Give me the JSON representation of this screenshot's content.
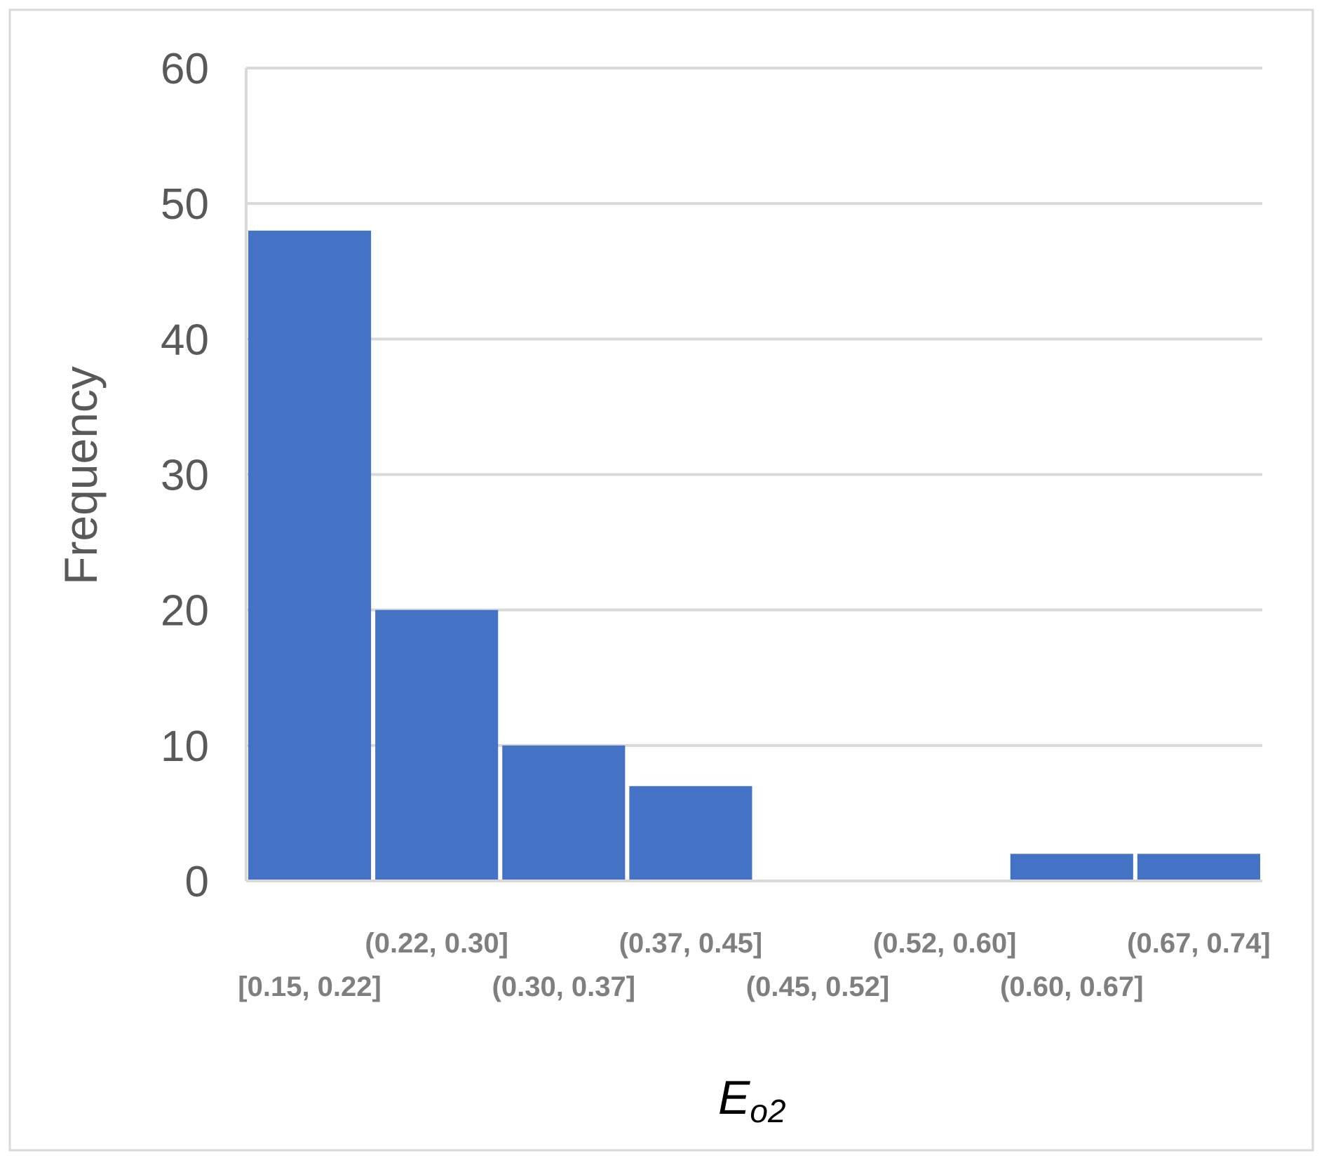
{
  "chart_data": {
    "type": "bar",
    "categories": [
      "[0.15, 0.22]",
      "(0.22, 0.30]",
      "(0.30, 0.37]",
      "(0.37, 0.45]",
      "(0.45, 0.52]",
      "(0.52, 0.60]",
      "(0.60, 0.67]",
      "(0.67, 0.74]"
    ],
    "values": [
      48,
      20,
      10,
      7,
      0,
      0,
      2,
      2
    ],
    "ylabel": "Frequency",
    "xlabel": {
      "main": "E",
      "subscript": "o2"
    },
    "ylim": [
      0,
      60
    ],
    "yticks": [
      0,
      10,
      20,
      30,
      40,
      50,
      60
    ],
    "grid": true,
    "legend": "none",
    "colors": {
      "bar": "#4472C4",
      "grid": "#D9D9D9",
      "axis": "#D9D9D9",
      "frame": "#D9D9D9"
    }
  }
}
